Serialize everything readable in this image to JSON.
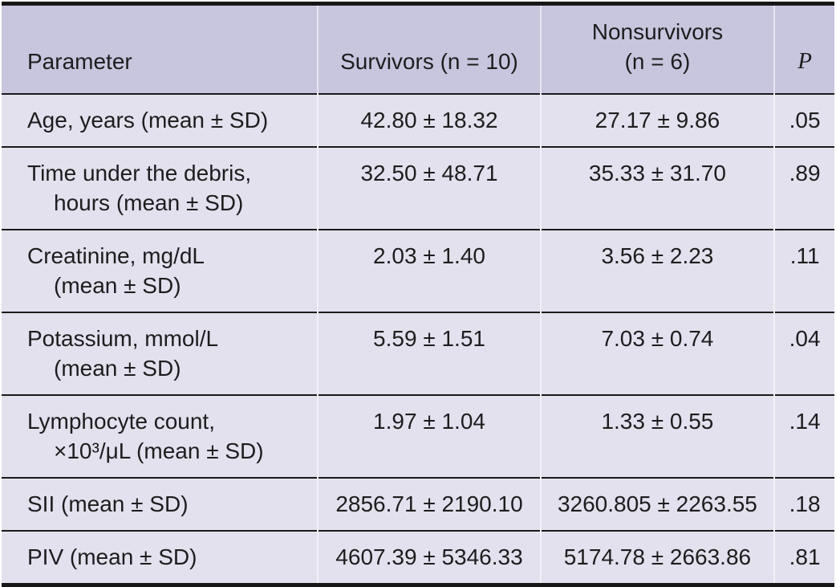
{
  "table": {
    "title_semantic": "Comparison of parameters between survivors and nonsurvivors",
    "colors": {
      "header_bg": "#c8c6de",
      "row_bg": "#e2e1ed",
      "border_heavy": "#171717",
      "border_light": "#1a1a1a",
      "column_separator": "rgba(255,255,255,0.55)",
      "text": "#1d1d1f"
    },
    "columns": [
      {
        "lines": [
          "Parameter"
        ]
      },
      {
        "lines": [
          "Survivors (n = 10)"
        ]
      },
      {
        "lines": [
          "Nonsurvivors",
          "(n = 6)"
        ]
      },
      {
        "lines": [
          "P"
        ]
      }
    ],
    "rows": [
      {
        "parameter": [
          "Age, years (mean ± SD)"
        ],
        "survivors": "42.80 ± 18.32",
        "nonsurvivors": "27.17 ± 9.86",
        "p": ".05"
      },
      {
        "parameter": [
          "Time under the debris,",
          "hours (mean ± SD)"
        ],
        "survivors": "32.50 ± 48.71",
        "nonsurvivors": "35.33 ± 31.70",
        "p": ".89"
      },
      {
        "parameter": [
          "Creatinine, mg/dL",
          "(mean ± SD)"
        ],
        "survivors": "2.03 ± 1.40",
        "nonsurvivors": "3.56 ± 2.23",
        "p": ".11"
      },
      {
        "parameter": [
          "Potassium, mmol/L",
          "(mean ± SD)"
        ],
        "survivors": "5.59 ± 1.51",
        "nonsurvivors": "7.03 ± 0.74",
        "p": ".04"
      },
      {
        "parameter": [
          "Lymphocyte count,",
          "×10³/μL (mean ± SD)"
        ],
        "survivors": "1.97 ± 1.04",
        "nonsurvivors": "1.33 ± 0.55",
        "p": ".14"
      },
      {
        "parameter": [
          "SII (mean ± SD)"
        ],
        "survivors": "2856.71 ± 2190.10",
        "nonsurvivors": "3260.805 ± 2263.55",
        "p": ".18"
      },
      {
        "parameter": [
          "PIV (mean ± SD)"
        ],
        "survivors": "4607.39 ± 5346.33",
        "nonsurvivors": "5174.78 ± 2663.86",
        "p": ".81"
      }
    ]
  }
}
